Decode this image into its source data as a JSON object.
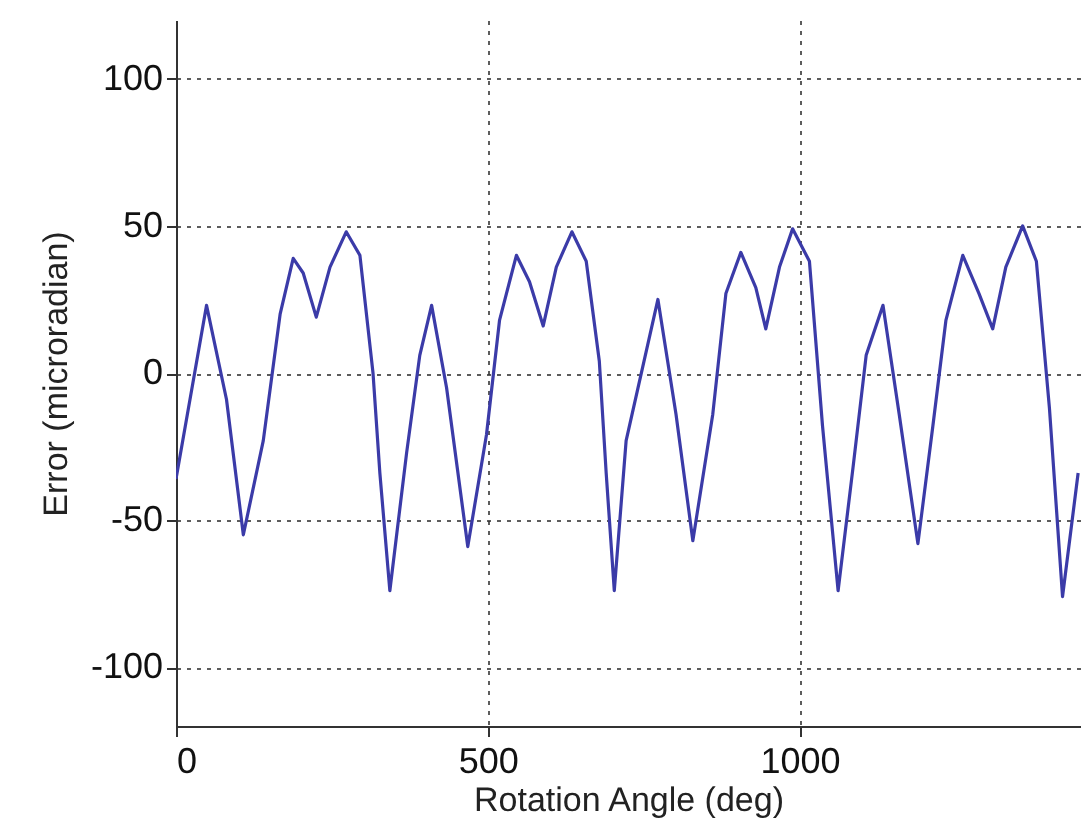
{
  "chart_data": {
    "type": "line",
    "xlabel": "Rotation Angle (deg)",
    "ylabel": "Error (microradian)",
    "xlim": [
      0,
      1450
    ],
    "ylim": [
      -120,
      120
    ],
    "xticks": [
      0,
      500,
      1000
    ],
    "yticks": [
      -100,
      -50,
      0,
      50,
      100
    ],
    "grid": true,
    "series": [
      {
        "color": "#3b3ba8",
        "x": [
          0,
          49,
          81,
          108,
          140,
          167,
          188,
          204,
          225,
          247,
          273,
          295,
          316,
          327,
          343,
          370,
          391,
          410,
          434,
          468,
          498,
          519,
          546,
          567,
          589,
          610,
          635,
          658,
          679,
          690,
          703,
          722,
          773,
          802,
          829,
          861,
          882,
          906,
          930,
          946,
          968,
          989,
          1016,
          1037,
          1062,
          1086,
          1107,
          1134,
          1160,
          1190,
          1214,
          1235,
          1262,
          1288,
          1310,
          1331,
          1358,
          1380,
          1401,
          1422,
          1447
        ],
        "values": [
          -36,
          23,
          -9,
          -55,
          -23,
          20,
          39,
          34,
          19,
          36,
          48,
          40,
          0,
          -34,
          -74,
          -27,
          6,
          23,
          -5,
          -59,
          -21,
          18,
          40,
          31,
          16,
          36,
          48,
          38,
          4,
          -34,
          -74,
          -23,
          25,
          -14,
          -57,
          -14,
          27,
          41,
          29,
          15,
          36,
          49,
          38,
          -18,
          -74,
          -32,
          6,
          23,
          -14,
          -58,
          -18,
          18,
          40,
          27,
          15,
          36,
          50,
          38,
          -12,
          -76,
          -34
        ]
      }
    ]
  }
}
